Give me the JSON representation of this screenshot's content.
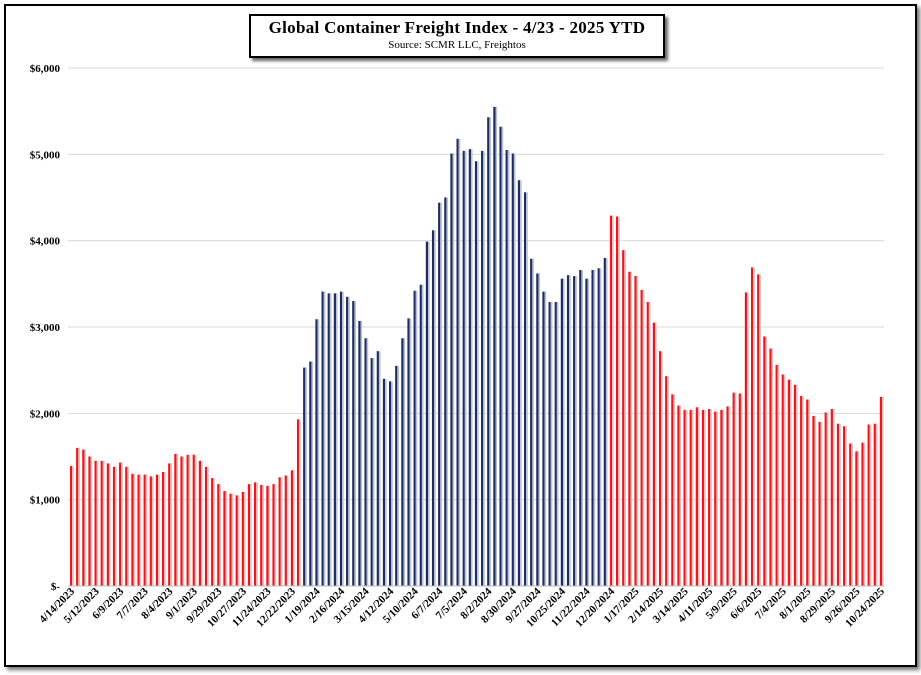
{
  "chart_data": {
    "type": "bar",
    "title": "Global Container Freight Index - 4/23 - 2025 YTD",
    "subtitle": "Source: SCMR LLC, Freightos",
    "xlabel": "",
    "ylabel": "",
    "ylim": [
      0,
      6000
    ],
    "yticks": [
      0,
      1000,
      2000,
      3000,
      4000,
      5000,
      6000
    ],
    "ytick_labels": [
      "$-",
      "$1,000",
      "$2,000",
      "$3,000",
      "$4,000",
      "$5,000",
      "$6,000"
    ],
    "grid": true,
    "colors": {
      "y2023": "#e8191e",
      "y2024": "#1f2d5c",
      "y2025": "#e8191e"
    },
    "tick_labels": [
      "4/14/2023",
      "5/12/2023",
      "6/9/2023",
      "7/7/2023",
      "8/4/2023",
      "9/1/2023",
      "9/29/2023",
      "10/27/2023",
      "11/24/2023",
      "12/22/2023",
      "1/19/2024",
      "2/16/2024",
      "3/15/2024",
      "4/12/2024",
      "5/10/2024",
      "6/7/2024",
      "7/5/2024",
      "8/2/2024",
      "8/30/2024",
      "9/27/2024",
      "10/25/2024",
      "11/22/2024",
      "12/20/2024",
      "1/17/2025",
      "2/14/2025",
      "3/14/2025",
      "4/11/2025",
      "5/9/2025",
      "6/6/2025",
      "7/4/2025",
      "8/1/2025",
      "8/29/2025",
      "9/26/2025",
      "10/24/2025"
    ],
    "series": [
      {
        "name": "2023",
        "values": [
          1390,
          1600,
          1580,
          1500,
          1450,
          1450,
          1420,
          1380,
          1430,
          1380,
          1300,
          1290,
          1290,
          1270,
          1290,
          1320,
          1420,
          1530,
          1500,
          1520,
          1520,
          1450,
          1380,
          1250,
          1180,
          1100,
          1070,
          1050,
          1090,
          1180,
          1200,
          1170,
          1160,
          1180,
          1260,
          1280,
          1340,
          1930
        ]
      },
      {
        "name": "2024",
        "values": [
          2530,
          2600,
          3090,
          3410,
          3390,
          3390,
          3410,
          3350,
          3300,
          3070,
          2870,
          2640,
          2720,
          2400,
          2370,
          2550,
          2870,
          3100,
          3420,
          3490,
          3990,
          4120,
          4440,
          4500,
          5010,
          5180,
          5040,
          5060,
          4920,
          5040,
          5430,
          5550,
          5320,
          5050,
          5010,
          4700,
          4560,
          3790,
          3620,
          3410,
          3290,
          3290,
          3560,
          3600,
          3590,
          3660,
          3560,
          3660,
          3680,
          3800
        ]
      },
      {
        "name": "2025",
        "values": [
          4290,
          4280,
          3890,
          3640,
          3590,
          3430,
          3290,
          3050,
          2720,
          2430,
          2220,
          2090,
          2040,
          2040,
          2070,
          2040,
          2050,
          2020,
          2040,
          2080,
          2240,
          2230,
          3400,
          3690,
          3610,
          2890,
          2750,
          2560,
          2450,
          2390,
          2330,
          2200,
          2160,
          1970,
          1900,
          2010,
          2050,
          1880,
          1850,
          1650,
          1560,
          1660,
          1870,
          1880,
          2190
        ]
      }
    ]
  }
}
